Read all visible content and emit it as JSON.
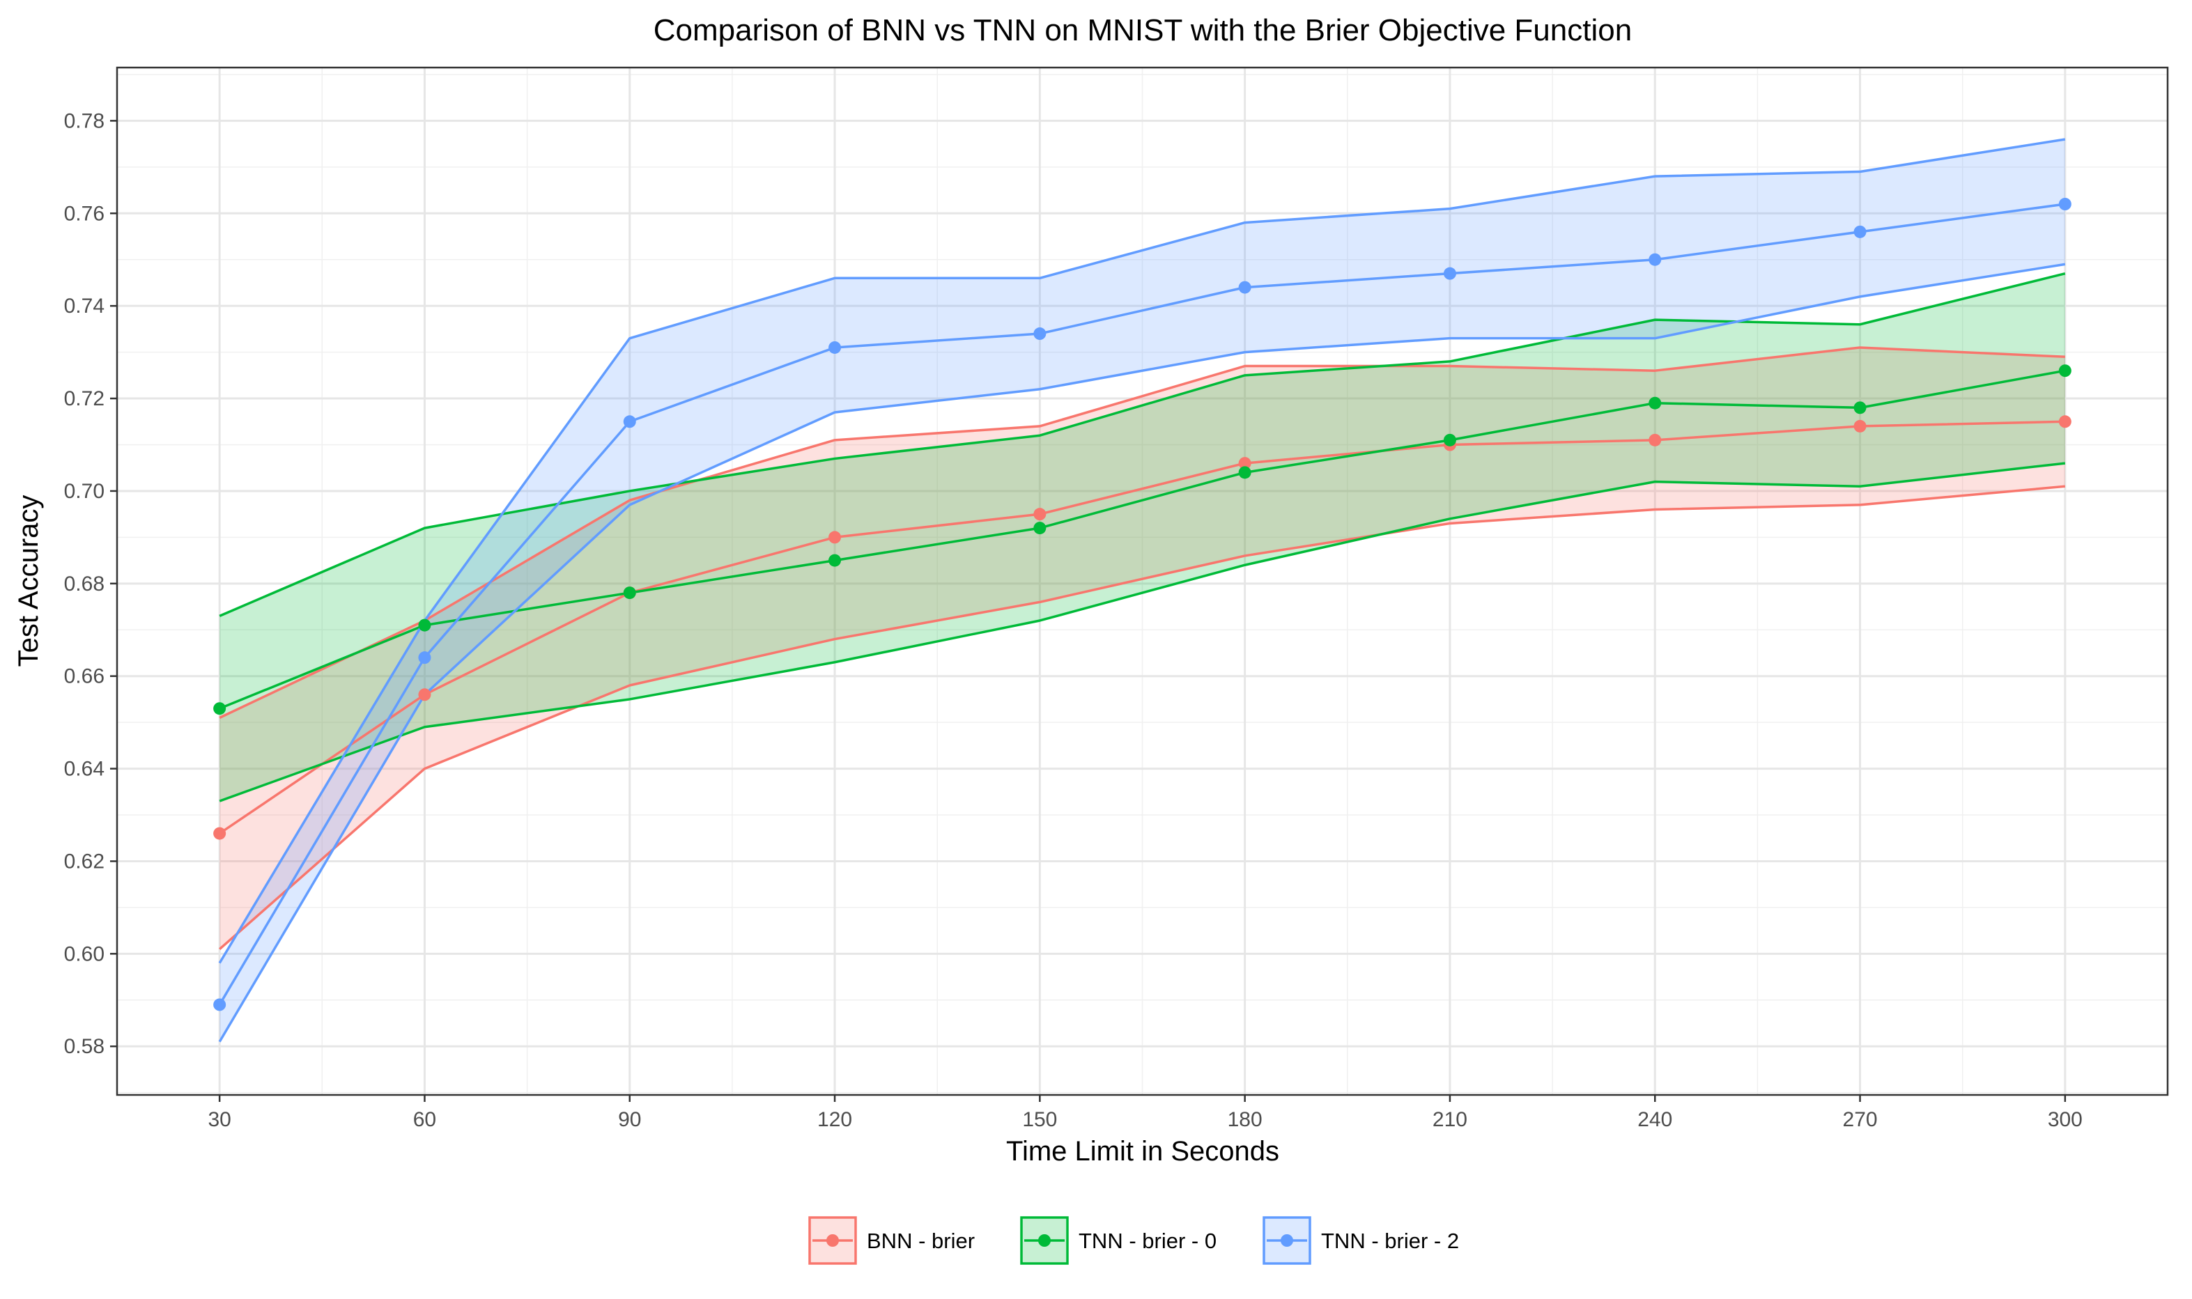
{
  "chart_data": {
    "type": "line",
    "title": "Comparison of BNN vs TNN on MNIST with the Brier Objective Function",
    "xlabel": "Time Limit in Seconds",
    "ylabel": "Test Accuracy",
    "xlim": [
      15,
      315
    ],
    "ylim": [
      0.5695,
      0.7915
    ],
    "x_ticks": [
      30,
      60,
      90,
      120,
      150,
      180,
      210,
      240,
      270,
      300
    ],
    "x_tick_labels": [
      "30",
      "60",
      "90",
      "120",
      "150",
      "180",
      "210",
      "240",
      "270",
      "300"
    ],
    "y_ticks": [
      0.58,
      0.6,
      0.62,
      0.64,
      0.66,
      0.68,
      0.7,
      0.72,
      0.74,
      0.76,
      0.78
    ],
    "y_tick_labels": [
      "0.58",
      "0.60",
      "0.62",
      "0.64",
      "0.66",
      "0.68",
      "0.70",
      "0.72",
      "0.74",
      "0.76",
      "0.78"
    ],
    "grid": true,
    "legend_position": "bottom",
    "x": [
      30,
      60,
      90,
      120,
      150,
      180,
      210,
      240,
      270,
      300
    ],
    "series": [
      {
        "name": "BNN - brier",
        "color": "#F8766D",
        "values": [
          0.626,
          0.656,
          0.678,
          0.69,
          0.695,
          0.706,
          0.71,
          0.711,
          0.714,
          0.715
        ],
        "upper": [
          0.651,
          0.672,
          0.698,
          0.711,
          0.714,
          0.727,
          0.727,
          0.726,
          0.731,
          0.729
        ],
        "lower": [
          0.601,
          0.64,
          0.658,
          0.668,
          0.676,
          0.686,
          0.693,
          0.696,
          0.697,
          0.701
        ]
      },
      {
        "name": "TNN - brier - 0",
        "color": "#00BA38",
        "values": [
          0.653,
          0.671,
          0.678,
          0.685,
          0.692,
          0.704,
          0.711,
          0.719,
          0.718,
          0.726
        ],
        "upper": [
          0.673,
          0.692,
          0.7,
          0.707,
          0.712,
          0.725,
          0.728,
          0.737,
          0.736,
          0.747
        ],
        "lower": [
          0.633,
          0.649,
          0.655,
          0.663,
          0.672,
          0.684,
          0.694,
          0.702,
          0.701,
          0.706
        ]
      },
      {
        "name": "TNN - brier - 2",
        "color": "#619CFF",
        "values": [
          0.589,
          0.664,
          0.715,
          0.731,
          0.734,
          0.744,
          0.747,
          0.75,
          0.756,
          0.762
        ],
        "upper": [
          0.598,
          0.672,
          0.733,
          0.746,
          0.746,
          0.758,
          0.761,
          0.768,
          0.769,
          0.776
        ],
        "lower": [
          0.581,
          0.656,
          0.697,
          0.717,
          0.722,
          0.73,
          0.733,
          0.733,
          0.742,
          0.749
        ]
      }
    ]
  }
}
